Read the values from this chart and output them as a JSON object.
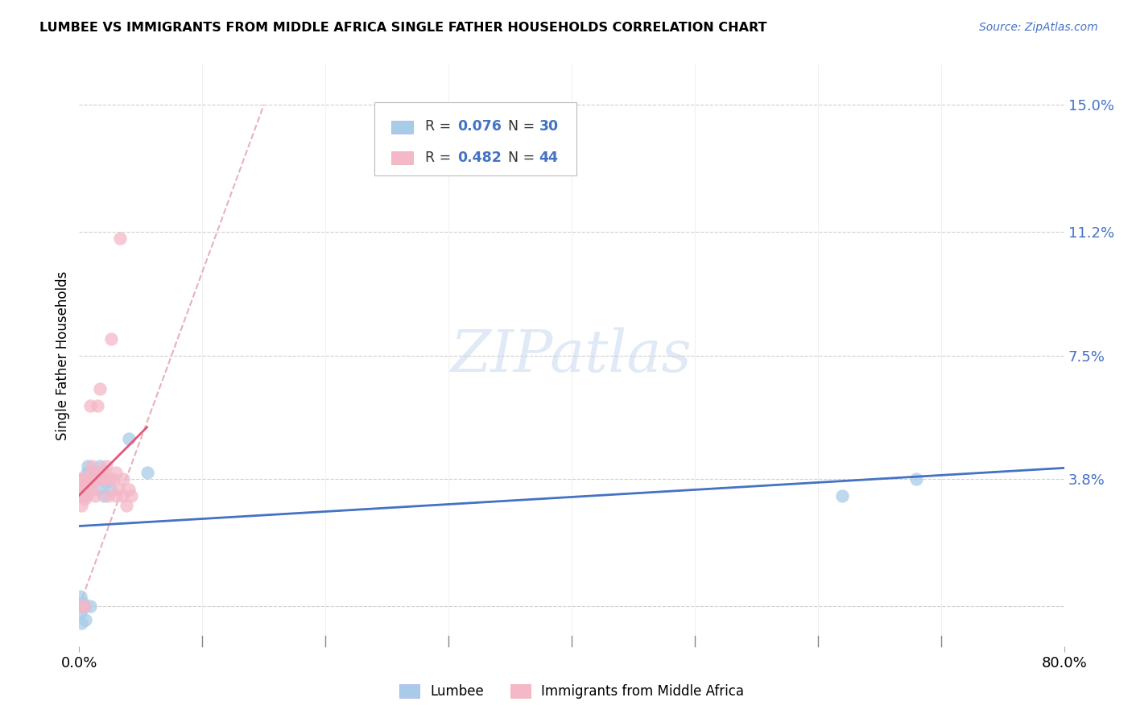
{
  "title": "LUMBEE VS IMMIGRANTS FROM MIDDLE AFRICA SINGLE FATHER HOUSEHOLDS CORRELATION CHART",
  "source": "Source: ZipAtlas.com",
  "ylabel": "Single Father Households",
  "ytick_labels": [
    "",
    "3.8%",
    "7.5%",
    "11.2%",
    "15.0%"
  ],
  "ytick_values": [
    0.0,
    0.038,
    0.075,
    0.112,
    0.15
  ],
  "xlim": [
    0.0,
    0.8
  ],
  "ylim": [
    -0.012,
    0.162
  ],
  "lumbee_R": "0.076",
  "lumbee_N": "30",
  "immigrants_R": "0.482",
  "immigrants_N": "44",
  "lumbee_color": "#a8cce8",
  "immigrants_color": "#f4b8c8",
  "lumbee_line_color": "#4472c4",
  "immigrants_line_color": "#e05878",
  "diagonal_color": "#e8b0be",
  "grid_color": "#d0d0d0",
  "background_color": "#ffffff",
  "legend_text_color": "#4472c4",
  "lumbee_x": [
    0.001,
    0.001,
    0.001,
    0.002,
    0.002,
    0.002,
    0.002,
    0.003,
    0.003,
    0.003,
    0.004,
    0.004,
    0.005,
    0.005,
    0.006,
    0.007,
    0.008,
    0.009,
    0.01,
    0.011,
    0.012,
    0.015,
    0.017,
    0.02,
    0.022,
    0.025,
    0.04,
    0.055,
    0.62,
    0.68
  ],
  "lumbee_y": [
    0.0,
    -0.002,
    0.003,
    0.0,
    0.035,
    0.038,
    -0.005,
    0.001,
    0.033,
    0.0,
    0.038,
    0.0,
    -0.004,
    0.038,
    0.04,
    0.042,
    0.037,
    0.0,
    0.038,
    0.04,
    0.038,
    0.035,
    0.042,
    0.033,
    0.037,
    0.035,
    0.05,
    0.04,
    0.033,
    0.038
  ],
  "immigrants_x": [
    0.001,
    0.001,
    0.001,
    0.001,
    0.002,
    0.002,
    0.002,
    0.003,
    0.003,
    0.004,
    0.004,
    0.004,
    0.005,
    0.005,
    0.006,
    0.007,
    0.008,
    0.009,
    0.01,
    0.01,
    0.011,
    0.012,
    0.013,
    0.014,
    0.015,
    0.016,
    0.017,
    0.018,
    0.02,
    0.02,
    0.022,
    0.023,
    0.025,
    0.026,
    0.028,
    0.03,
    0.03,
    0.032,
    0.033,
    0.035,
    0.036,
    0.038,
    0.04,
    0.042
  ],
  "immigrants_y": [
    0.033,
    0.036,
    0.038,
    0.0,
    0.03,
    0.033,
    0.038,
    0.035,
    0.036,
    0.032,
    0.035,
    0.0,
    0.038,
    0.035,
    0.033,
    0.038,
    0.038,
    0.06,
    0.042,
    0.04,
    0.035,
    0.038,
    0.033,
    0.038,
    0.06,
    0.04,
    0.065,
    0.038,
    0.04,
    0.038,
    0.042,
    0.033,
    0.038,
    0.08,
    0.038,
    0.04,
    0.033,
    0.035,
    0.11,
    0.033,
    0.038,
    0.03,
    0.035,
    0.033
  ]
}
